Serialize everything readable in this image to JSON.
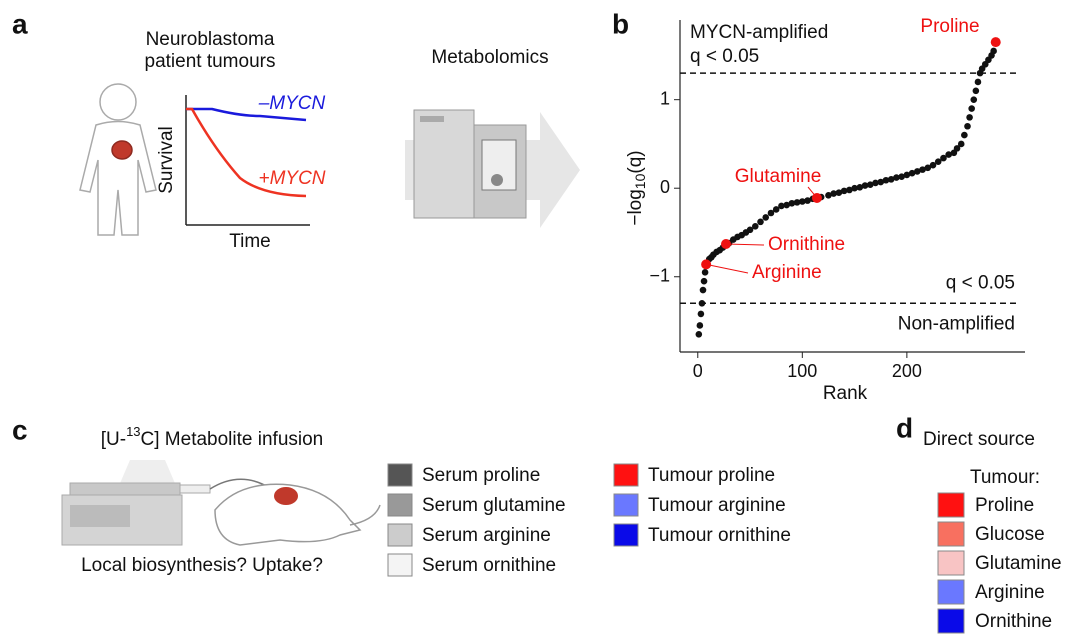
{
  "panel_a": {
    "letter": "a",
    "title": [
      "Neuroblastoma",
      "patient tumours"
    ],
    "ylabel": "Survival",
    "xlabel": "Time",
    "curve_labels": [
      "–MYCN",
      "+MYCN"
    ],
    "method": "Metabolomics"
  },
  "chart_data": {
    "type": "scatter",
    "letter": "b",
    "xlabel": "Rank",
    "ylabel": {
      "prefix": "−log",
      "sub": "10",
      "suffix": "(q)"
    },
    "color": "#111111",
    "highlight_color": "#ee1111",
    "x": [
      1,
      2,
      3,
      4,
      5,
      6,
      7,
      9,
      11,
      13,
      15,
      18,
      21,
      24,
      30,
      34,
      38,
      42,
      46,
      50,
      55,
      60,
      65,
      70,
      75,
      80,
      85,
      90,
      95,
      100,
      105,
      110,
      118,
      125,
      130,
      135,
      140,
      145,
      150,
      155,
      160,
      165,
      170,
      175,
      180,
      185,
      190,
      195,
      200,
      205,
      210,
      215,
      220,
      225,
      230,
      235,
      240,
      245,
      248,
      252,
      255,
      258,
      260,
      262,
      264,
      266,
      268,
      270,
      272,
      275,
      278,
      281,
      283
    ],
    "values": [
      -1.65,
      -1.55,
      -1.42,
      -1.3,
      -1.15,
      -1.05,
      -0.95,
      -0.85,
      -0.8,
      -0.78,
      -0.75,
      -0.72,
      -0.7,
      -0.67,
      -0.62,
      -0.58,
      -0.55,
      -0.53,
      -0.5,
      -0.47,
      -0.43,
      -0.38,
      -0.33,
      -0.28,
      -0.24,
      -0.2,
      -0.19,
      -0.17,
      -0.16,
      -0.15,
      -0.14,
      -0.12,
      -0.1,
      -0.08,
      -0.06,
      -0.05,
      -0.03,
      -0.02,
      0.0,
      0.01,
      0.03,
      0.04,
      0.06,
      0.07,
      0.09,
      0.1,
      0.12,
      0.13,
      0.15,
      0.17,
      0.19,
      0.21,
      0.23,
      0.26,
      0.3,
      0.34,
      0.38,
      0.4,
      0.45,
      0.5,
      0.6,
      0.7,
      0.8,
      0.9,
      1.0,
      1.1,
      1.2,
      1.3,
      1.35,
      1.4,
      1.45,
      1.5,
      1.55
    ],
    "highlights": [
      {
        "name": "Proline",
        "x": 285,
        "value": 1.65
      },
      {
        "name": "Glutamine",
        "x": 114,
        "value": -0.11
      },
      {
        "name": "Ornithine",
        "x": 27,
        "value": -0.63
      },
      {
        "name": "Arginine",
        "x": 8,
        "value": -0.86
      }
    ],
    "thresholds": [
      {
        "value": 1.3,
        "group": "MYCN-amplified",
        "label": "q < 0.05"
      },
      {
        "value": -1.3,
        "group": "Non-amplified",
        "label": "q < 0.05"
      }
    ],
    "xlim": [
      -17,
      313
    ],
    "ylim": [
      -1.85,
      1.9
    ],
    "xticks": [
      0,
      100,
      200
    ],
    "yticks": [
      {
        "value": -1,
        "label": "−1"
      },
      0,
      1
    ]
  },
  "panel_c": {
    "letter": "c",
    "title": {
      "prefix": "[U-",
      "sup": "13",
      "suffix": "C] Metabolite infusion"
    },
    "question": "Local biosynthesis? Uptake?",
    "legend": [
      {
        "name": "Serum proline",
        "color": "#555555"
      },
      {
        "name": "Serum glutamine",
        "color": "#999999"
      },
      {
        "name": "Serum arginine",
        "color": "#cccccc"
      },
      {
        "name": "Serum ornithine",
        "color": "#f4f4f4"
      },
      {
        "name": "Tumour proline",
        "color": "#ff1111"
      },
      {
        "name": "Tumour arginine",
        "color": "#6a78ff"
      },
      {
        "name": "Tumour ornithine",
        "color": "#0a0ae8"
      }
    ]
  },
  "panel_d": {
    "letter": "d",
    "title": "Direct source",
    "subtitle": "Tumour:",
    "legend": [
      {
        "name": "Proline",
        "color": "#ff1111"
      },
      {
        "name": "Glucose",
        "color": "#f87060"
      },
      {
        "name": "Glutamine",
        "color": "#f8c4c4"
      },
      {
        "name": "Arginine",
        "color": "#6a78ff"
      },
      {
        "name": "Ornithine",
        "color": "#0a0ae8"
      }
    ]
  }
}
